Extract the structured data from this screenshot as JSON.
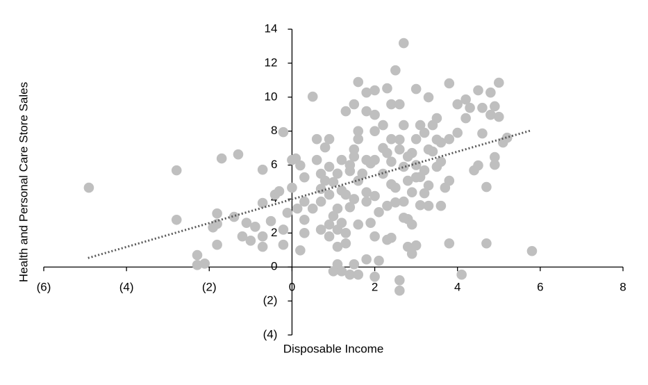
{
  "chart_data": {
    "type": "scatter",
    "x_label": "Disposable Income",
    "y_label": "Health and Personal Care Store Sales",
    "x": [
      -4.91,
      -2.79,
      -2.79,
      -1.7,
      -1.3,
      -2.29,
      -2.29,
      -2.11,
      -1.81,
      -1.81,
      -1.81,
      -1.91,
      -1.4,
      -1.2,
      -1.1,
      -1.0,
      -0.89,
      -0.71,
      -0.71,
      -0.71,
      -0.71,
      -0.51,
      -0.41,
      -0.31,
      -0.21,
      -0.21,
      -0.21,
      -0.11,
      0,
      0,
      0.09,
      0.2,
      0.2,
      0.13,
      0.3,
      0.3,
      0.3,
      0.3,
      0.5,
      0.5,
      0.6,
      0.6,
      0.7,
      0.7,
      0.7,
      0.8,
      0.8,
      0.9,
      0.9,
      0.9,
      0.9,
      1.0,
      1.0,
      1.1,
      1.1,
      1.1,
      1.1,
      1.2,
      1.2,
      1.2,
      1.3,
      1.3,
      1.3,
      1.4,
      1.4,
      1.4,
      1.5,
      1.5,
      1.5,
      1.6,
      1.6,
      1.6,
      1.6,
      1.6,
      1.8,
      1.8,
      1.8,
      1.8,
      1.8,
      2.0,
      2.0,
      2.0,
      2.0,
      2.0,
      2.0,
      2.1,
      2.1,
      2.2,
      2.2,
      2.3,
      2.3,
      2.3,
      2.4,
      2.4,
      2.4,
      2.4,
      2.5,
      2.5,
      2.6,
      2.6,
      2.6,
      2.6,
      2.7,
      2.7,
      2.7,
      2.7,
      2.8,
      2.8,
      2.8,
      2.9,
      2.9,
      2.9,
      3.0,
      3.0,
      3.0,
      3.0,
      3.1,
      3.1,
      3.2,
      3.2,
      3.3,
      3.3,
      3.3,
      3.4,
      3.5,
      3.5,
      3.6,
      3.6,
      3.7,
      3.8,
      3.8,
      3.8,
      3.8,
      4.0,
      4.0,
      4.1,
      4.2,
      4.2,
      4.3,
      4.4,
      4.5,
      4.5,
      4.6,
      4.6,
      4.7,
      4.7,
      4.8,
      4.8,
      4.9,
      4.9,
      4.9,
      5.0,
      5.0,
      5.1,
      5.2,
      5.8,
      1.5,
      1.7,
      1.9,
      2.2,
      2.4,
      2.6,
      2.8,
      3.0,
      3.2,
      3.4,
      1.2,
      1.5,
      1.8,
      2.5,
      2.9,
      3.3,
      1.0,
      1.3,
      0.9,
      3.5,
      2.0,
      1.6,
      1.4,
      1.1,
      0.7,
      2.7,
      3.1,
      2.3,
      1.9,
      3.6
    ],
    "values": [
      4.67,
      5.69,
      2.78,
      6.39,
      6.63,
      0.7,
      0.12,
      0.2,
      3.15,
      2.54,
      1.31,
      2.33,
      2.95,
      1.8,
      2.6,
      1.55,
      2.37,
      1.19,
      1.8,
      3.77,
      5.73,
      2.7,
      4.26,
      4.46,
      7.94,
      1.31,
      2.2,
      3.19,
      4.67,
      6.3,
      6.39,
      5.98,
      0.98,
      3.44,
      3.85,
      2.78,
      5.28,
      2.0,
      10.03,
      3.44,
      7.53,
      6.3,
      5.49,
      3.85,
      2.2,
      7.04,
      5.08,
      7.53,
      5.9,
      4.26,
      1.8,
      -0.25,
      5.0,
      3.44,
      2.2,
      1.19,
      0.16,
      6.3,
      2.6,
      -0.25,
      9.17,
      4.26,
      1.39,
      -0.45,
      5.65,
      3.52,
      9.58,
      6.92,
      0.16,
      10.89,
      7.53,
      5.08,
      2.5,
      -0.45,
      10.27,
      9.17,
      6.3,
      3.85,
      0.45,
      10.4,
      8.96,
      6.3,
      4.18,
      1.8,
      -0.57,
      0.37,
      3.23,
      8.35,
      5.49,
      10.52,
      6.71,
      1.6,
      9.58,
      7.53,
      4.87,
      1.72,
      11.58,
      4.67,
      -0.78,
      -1.39,
      9.58,
      6.92,
      13.18,
      8.35,
      5.9,
      3.85,
      5.08,
      2.82,
      1.19,
      0.78,
      6.71,
      2.5,
      10.48,
      7.53,
      5.28,
      1.27,
      8.35,
      3.64,
      5.69,
      4.34,
      9.99,
      6.92,
      3.6,
      8.35,
      8.76,
      5.9,
      3.6,
      7.33,
      4.67,
      10.81,
      1.39,
      7.53,
      5.08,
      7.9,
      9.58,
      -0.45,
      9.86,
      8.76,
      9.37,
      5.69,
      10.4,
      5.98,
      9.37,
      7.86,
      4.71,
      1.39,
      10.27,
      8.96,
      9.46,
      6.47,
      6.02,
      10.85,
      8.84,
      7.33,
      7.61,
      0.94,
      6.5,
      5.5,
      6.1,
      7.0,
      6.2,
      7.5,
      6.5,
      6.0,
      7.9,
      6.8,
      4.5,
      4.0,
      4.4,
      3.8,
      4.4,
      4.8,
      3.0,
      2.0,
      2.5,
      7.5,
      8.0,
      8.0,
      6.0,
      5.5,
      4.6,
      2.9,
      5.3,
      3.6,
      2.6,
      6.2
    ],
    "color": "#bfbfbf",
    "trendline": {
      "x": [
        -4.93,
        5.75
      ],
      "y": [
        0.53,
        8.02
      ],
      "color": "#595959",
      "style": "dotted"
    },
    "xlim": [
      -6,
      8
    ],
    "xticks": [
      {
        "value": -6,
        "label": "(6)"
      },
      {
        "value": -4,
        "label": "(4)"
      },
      {
        "value": -2,
        "label": "(2)"
      },
      0,
      2,
      4,
      6,
      8
    ],
    "ylim": [
      -4,
      14
    ],
    "yticks": [
      {
        "value": -4,
        "label": "(4)"
      },
      {
        "value": -2,
        "label": "(2)"
      },
      0,
      2,
      4,
      6,
      8,
      10,
      12,
      14
    ],
    "grid": false
  }
}
